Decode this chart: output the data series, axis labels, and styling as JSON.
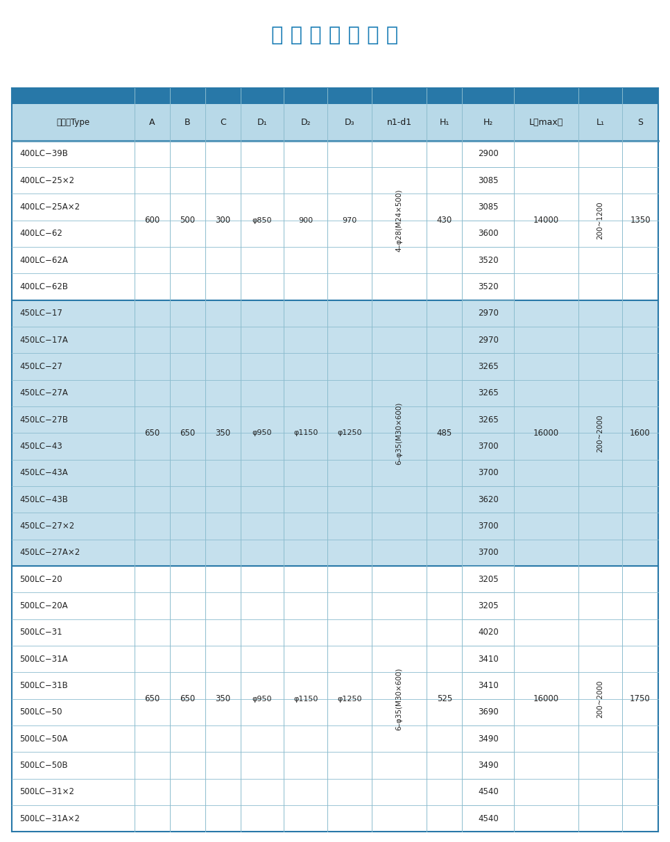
{
  "title": "外 形 安 装 尺 寸 表",
  "title_color": "#1a7db5",
  "header_bg_dark": "#2878a8",
  "header_bg_light": "#b8d9e8",
  "row_bg_white": "#ffffff",
  "row_bg_blue": "#c5e0ed",
  "border_dark": "#2878a8",
  "border_light": "#8bbcce",
  "text_color": "#222222",
  "col_headers": [
    "泵型号Type",
    "A",
    "B",
    "C",
    "D₁",
    "D₂",
    "D₃",
    "n1-d1",
    "H₁",
    "H₂",
    "L（max）",
    "L₁",
    "S"
  ],
  "col_widths_rel": [
    2.0,
    0.58,
    0.58,
    0.58,
    0.7,
    0.72,
    0.72,
    0.9,
    0.58,
    0.85,
    1.05,
    0.72,
    0.58
  ],
  "groups": [
    {
      "bg": "#ffffff",
      "rows": [
        {
          "type": "400LC−39B"
        },
        {
          "type": "400LC−25×2"
        },
        {
          "type": "400LC−25A×2"
        },
        {
          "type": "400LC−62"
        },
        {
          "type": "400LC−62A"
        },
        {
          "type": "400LC−62B"
        }
      ],
      "H2": [
        "2900",
        "3085",
        "3085",
        "3600",
        "3520",
        "3520"
      ],
      "merged": {
        "A": "600",
        "B": "500",
        "C": "300",
        "D1": "φ850",
        "D2": "900",
        "D3": "970",
        "nd": "4–φ28(M24×500)",
        "H1": "430",
        "L": "14000",
        "L1": "200~1200",
        "S": "1350"
      }
    },
    {
      "bg": "#c5e0ed",
      "rows": [
        {
          "type": "450LC−17"
        },
        {
          "type": "450LC−17A"
        },
        {
          "type": "450LC−27"
        },
        {
          "type": "450LC−27A"
        },
        {
          "type": "450LC−27B"
        },
        {
          "type": "450LC−43"
        },
        {
          "type": "450LC−43A"
        },
        {
          "type": "450LC−43B"
        },
        {
          "type": "450LC−27×2"
        },
        {
          "type": "450LC−27A×2"
        }
      ],
      "H2": [
        "2970",
        "2970",
        "3265",
        "3265",
        "3265",
        "3700",
        "3700",
        "3620",
        "3700",
        "3700"
      ],
      "merged": {
        "A": "650",
        "B": "650",
        "C": "350",
        "D1": "φ950",
        "D2": "φ1150",
        "D3": "φ1250",
        "nd": "6–φ35(M30×600)",
        "H1": "485",
        "L": "16000",
        "L1": "200~2000",
        "S": "1600"
      }
    },
    {
      "bg": "#ffffff",
      "rows": [
        {
          "type": "500LC−20"
        },
        {
          "type": "500LC−20A"
        },
        {
          "type": "500LC−31"
        },
        {
          "type": "500LC−31A"
        },
        {
          "type": "500LC−31B"
        },
        {
          "type": "500LC−50"
        },
        {
          "type": "500LC−50A"
        },
        {
          "type": "500LC−50B"
        },
        {
          "type": "500LC−31×2"
        },
        {
          "type": "500LC−31A×2"
        }
      ],
      "H2": [
        "3205",
        "3205",
        "4020",
        "3410",
        "3410",
        "3690",
        "3490",
        "3490",
        "4540",
        "4540"
      ],
      "merged": {
        "A": "650",
        "B": "650",
        "C": "350",
        "D1": "φ950",
        "D2": "φ1150",
        "D3": "φ1250",
        "nd": "6–φ35(M30×600)",
        "H1": "525",
        "L": "16000",
        "L1": "200~2000",
        "S": "1750"
      }
    }
  ]
}
